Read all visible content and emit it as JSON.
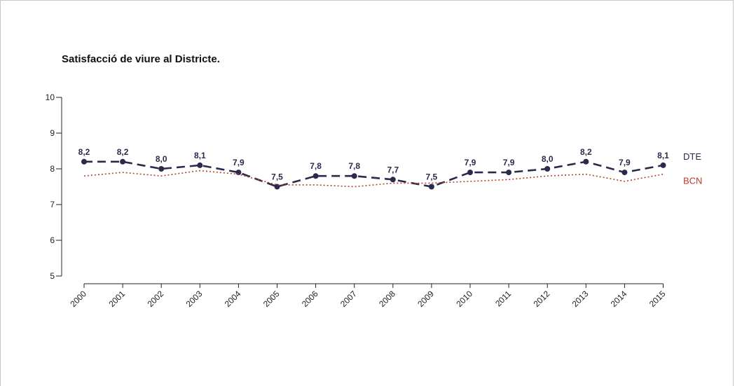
{
  "chart_data": {
    "type": "line",
    "title": "Satisfacció de viure al Districte.",
    "categories": [
      "2000",
      "2001",
      "2002",
      "2003",
      "2004",
      "2005",
      "2006",
      "2007",
      "2008",
      "2009",
      "2010",
      "2011",
      "2012",
      "2013",
      "2014",
      "2015"
    ],
    "ylim": [
      5,
      10
    ],
    "yticks": [
      "5",
      "6",
      "7",
      "8",
      "9",
      "10"
    ],
    "series": [
      {
        "name": "DTE",
        "values": [
          8.2,
          8.2,
          8.0,
          8.1,
          7.9,
          7.5,
          7.8,
          7.8,
          7.7,
          7.5,
          7.9,
          7.9,
          8.0,
          8.2,
          7.9,
          8.1
        ],
        "labels": [
          "8,2",
          "8,2",
          "8,0",
          "8,1",
          "7,9",
          "7,5",
          "7,8",
          "7,8",
          "7,7",
          "7,5",
          "7,9",
          "7,9",
          "8,0",
          "8,2",
          "7,9",
          "8,1"
        ],
        "color": "#2b2a4c",
        "style": "dashed-markers"
      },
      {
        "name": "BCN",
        "values": [
          7.8,
          7.9,
          7.8,
          7.95,
          7.85,
          7.55,
          7.55,
          7.5,
          7.6,
          7.6,
          7.65,
          7.7,
          7.8,
          7.85,
          7.65,
          7.85
        ],
        "color": "#b5402a",
        "style": "dotted"
      }
    ],
    "grid": false,
    "legend": "right"
  }
}
